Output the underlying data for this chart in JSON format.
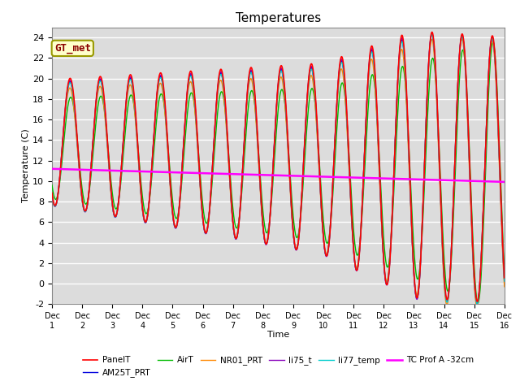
{
  "title": "Temperatures",
  "xlabel": "Time",
  "ylabel": "Temperature (C)",
  "ylim": [
    -2,
    25
  ],
  "xlim": [
    0,
    15
  ],
  "xtick_labels": [
    "Dec 1",
    "Dec 2",
    "Dec 3",
    "Dec 4",
    "Dec 5",
    "Dec 6",
    "Dec 7",
    "Dec 8",
    "Dec 9",
    "Dec 10",
    "Dec 11",
    "Dec 12",
    "Dec 13",
    "Dec 14",
    "Dec 15",
    "Dec 16"
  ],
  "ytick_values": [
    -2,
    0,
    2,
    4,
    6,
    8,
    10,
    12,
    14,
    16,
    18,
    20,
    22,
    24
  ],
  "series": {
    "PanelT": {
      "color": "#FF0000",
      "lw": 1.2,
      "zorder": 5
    },
    "AM25T_PRT": {
      "color": "#0000DD",
      "lw": 1.0,
      "zorder": 4
    },
    "AirT": {
      "color": "#00BB00",
      "lw": 1.0,
      "zorder": 4
    },
    "NR01_PRT": {
      "color": "#FF8800",
      "lw": 1.0,
      "zorder": 4
    },
    "li75_t": {
      "color": "#8800BB",
      "lw": 1.0,
      "zorder": 4
    },
    "li77_temp": {
      "color": "#00CCCC",
      "lw": 1.0,
      "zorder": 4
    },
    "TC Prof A -32cm": {
      "color": "#FF00FF",
      "lw": 1.8,
      "zorder": 6
    }
  },
  "annotation_text": "GT_met",
  "bg_color": "#DCDCDC",
  "grid_color": "#FFFFFF",
  "title_fontsize": 11
}
